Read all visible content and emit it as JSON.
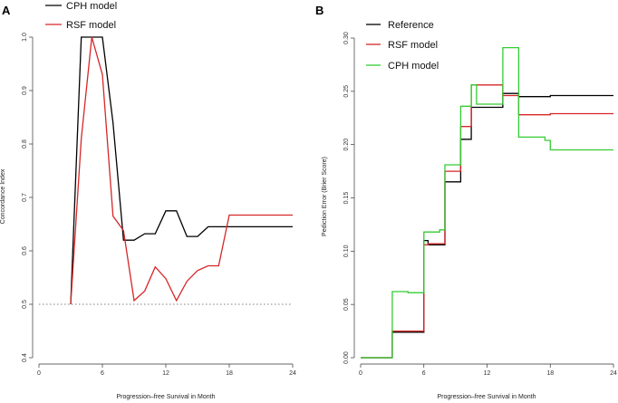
{
  "chart_data": [
    {
      "type": "line",
      "panel": "A",
      "xlabel": "Progression–free Survival in Month",
      "ylabel": "Concordance Index",
      "xlim": [
        0,
        24
      ],
      "ylim": [
        0.4,
        1.0
      ],
      "xticks": [
        0,
        6,
        12,
        18,
        24
      ],
      "yticks": [
        0.4,
        0.5,
        0.6,
        0.7,
        0.8,
        0.9,
        1.0
      ],
      "xtick_labels": [
        "0",
        "6",
        "12",
        "18",
        "24"
      ],
      "ytick_labels": [
        "0.4",
        "0.5",
        "0.6",
        "0.7",
        "0.8",
        "0.9",
        "1.0"
      ],
      "reference_line": 0.5,
      "legend_position": "top-left",
      "series": [
        {
          "name": "CPH model",
          "color": "#000000",
          "x": [
            3,
            4,
            5,
            6,
            7,
            8,
            9,
            10,
            11,
            12,
            13,
            14,
            15,
            16,
            17,
            18,
            24
          ],
          "y": [
            0.5,
            1.0,
            1.0,
            1.0,
            0.84,
            0.62,
            0.62,
            0.632,
            0.632,
            0.675,
            0.675,
            0.627,
            0.627,
            0.645,
            0.645,
            0.645,
            0.645
          ]
        },
        {
          "name": "RSF model",
          "color": "#d62728",
          "x": [
            3,
            4,
            5,
            6,
            7,
            8,
            9,
            10,
            11,
            12,
            13,
            14,
            15,
            16,
            17,
            18,
            24
          ],
          "y": [
            0.5,
            0.81,
            1.0,
            0.93,
            0.665,
            0.638,
            0.507,
            0.525,
            0.57,
            0.548,
            0.507,
            0.543,
            0.563,
            0.572,
            0.572,
            0.667,
            0.667
          ]
        }
      ]
    },
    {
      "type": "line",
      "panel": "B",
      "xlabel": "Progression–free Survival in Month",
      "ylabel": "Pediction Error (Brier Score)",
      "xlim": [
        0,
        24
      ],
      "ylim": [
        0,
        0.3
      ],
      "xticks": [
        0,
        6,
        12,
        18,
        24
      ],
      "yticks": [
        0,
        0.05,
        0.1,
        0.15,
        0.2,
        0.25,
        0.3
      ],
      "xtick_labels": [
        "0",
        "6",
        "12",
        "18",
        "24"
      ],
      "ytick_labels": [
        "0.00",
        "0.05",
        "0.10",
        "0.15",
        "0.20",
        "0.25",
        "0.30"
      ],
      "legend_position": "top-left",
      "series": [
        {
          "name": "Reference",
          "color": "#000000",
          "x": [
            0,
            3,
            6,
            6.4,
            8,
            9.5,
            10.5,
            13.5,
            15,
            18,
            24
          ],
          "y": [
            0,
            0.024,
            0.11,
            0.106,
            0.165,
            0.205,
            0.235,
            0.248,
            0.245,
            0.246,
            0.246
          ]
        },
        {
          "name": "RSF model",
          "color": "#d62728",
          "x": [
            0,
            3,
            6,
            6.4,
            8,
            9.5,
            10.5,
            13.5,
            15,
            18,
            24
          ],
          "y": [
            0,
            0.025,
            0.106,
            0.107,
            0.175,
            0.217,
            0.256,
            0.246,
            0.228,
            0.229,
            0.229
          ]
        },
        {
          "name": "CPH model",
          "color": "#33cc33",
          "x": [
            0,
            3,
            4.5,
            6,
            7.5,
            8,
            9.5,
            10.5,
            11,
            13.5,
            15,
            17.5,
            18,
            24
          ],
          "y": [
            0,
            0.062,
            0.061,
            0.118,
            0.12,
            0.181,
            0.236,
            0.256,
            0.238,
            0.291,
            0.207,
            0.204,
            0.195,
            0.195
          ]
        }
      ]
    }
  ]
}
